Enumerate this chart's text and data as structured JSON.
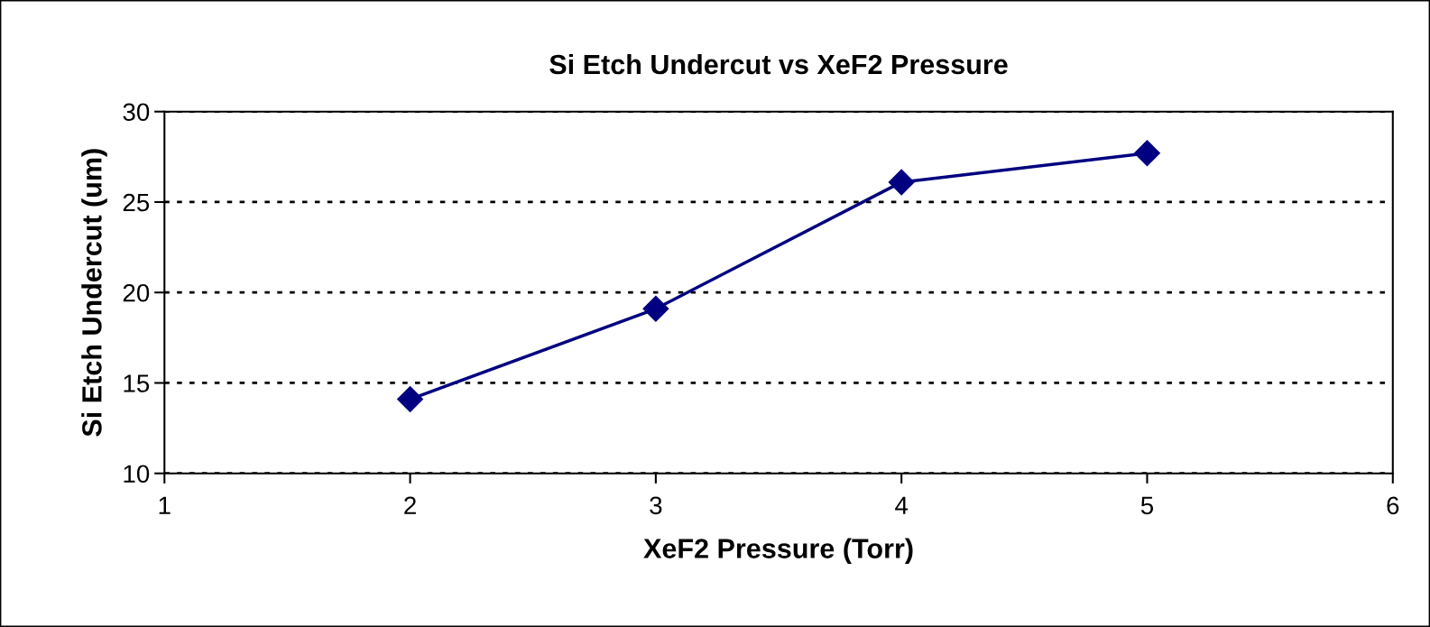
{
  "chart_data": {
    "type": "line",
    "title": "Si Etch Undercut vs XeF2 Pressure",
    "xlabel": "XeF2 Pressure (Torr)",
    "ylabel": "Si Etch Undercut (um)",
    "x": [
      2,
      3,
      4,
      5
    ],
    "series": [
      {
        "color": "#000080",
        "values": [
          14.1,
          19.1,
          26.1,
          27.7
        ]
      }
    ],
    "xlim": [
      1,
      6
    ],
    "xticks": [
      1,
      2,
      3,
      4,
      5,
      6
    ],
    "ylim": [
      10,
      30
    ],
    "yticks": [
      10,
      15,
      20,
      25,
      30
    ],
    "grid": "y",
    "marker": "diamond",
    "line_style": "solid",
    "legend": false
  }
}
